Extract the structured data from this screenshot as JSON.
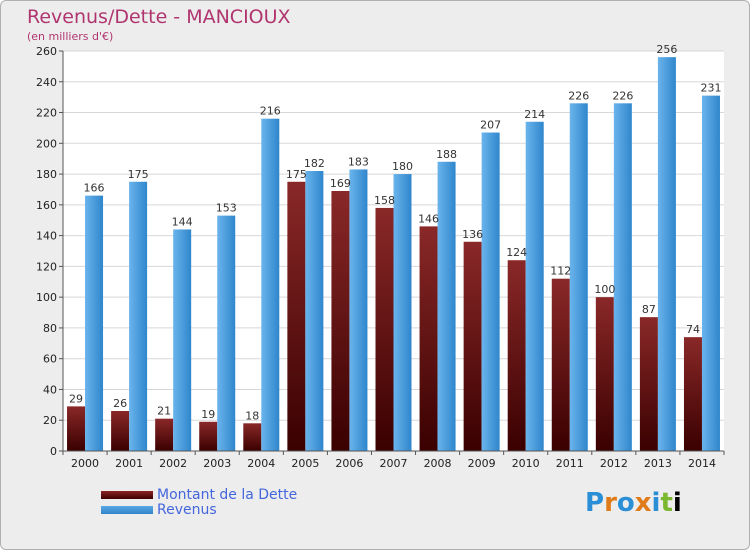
{
  "header": {
    "title": "Revenus/Dette - MANCIOUX",
    "subtitle": "(en milliers d'€)"
  },
  "legend": {
    "items": [
      {
        "label": "Montant de la Dette",
        "color": "#6e1a1a"
      },
      {
        "label": "Revenus",
        "color": "#3f97db"
      }
    ]
  },
  "logo": {
    "text": "Proxiti",
    "letters": [
      "P",
      "r",
      "o",
      "x",
      "i",
      "t",
      "i"
    ]
  },
  "chart_data": {
    "type": "bar",
    "title": "Revenus/Dette - MANCIOUX",
    "subtitle": "(en milliers d'€)",
    "categories": [
      "2000",
      "2001",
      "2002",
      "2003",
      "2004",
      "2005",
      "2006",
      "2007",
      "2008",
      "2009",
      "2010",
      "2011",
      "2012",
      "2013",
      "2014"
    ],
    "series": [
      {
        "name": "Montant de la Dette",
        "color": "#6e1a1a",
        "values": [
          29,
          26,
          21,
          19,
          18,
          175,
          169,
          158,
          146,
          136,
          124,
          112,
          100,
          87,
          74
        ]
      },
      {
        "name": "Revenus",
        "color": "#3f97db",
        "values": [
          166,
          175,
          144,
          153,
          216,
          182,
          183,
          180,
          188,
          207,
          214,
          226,
          226,
          256,
          231
        ]
      }
    ],
    "ylim": [
      0,
      260
    ],
    "yticks": [
      0,
      20,
      40,
      60,
      80,
      100,
      120,
      140,
      160,
      180,
      200,
      220,
      240,
      260
    ],
    "grid": true,
    "legend_position": "bottom-left"
  }
}
